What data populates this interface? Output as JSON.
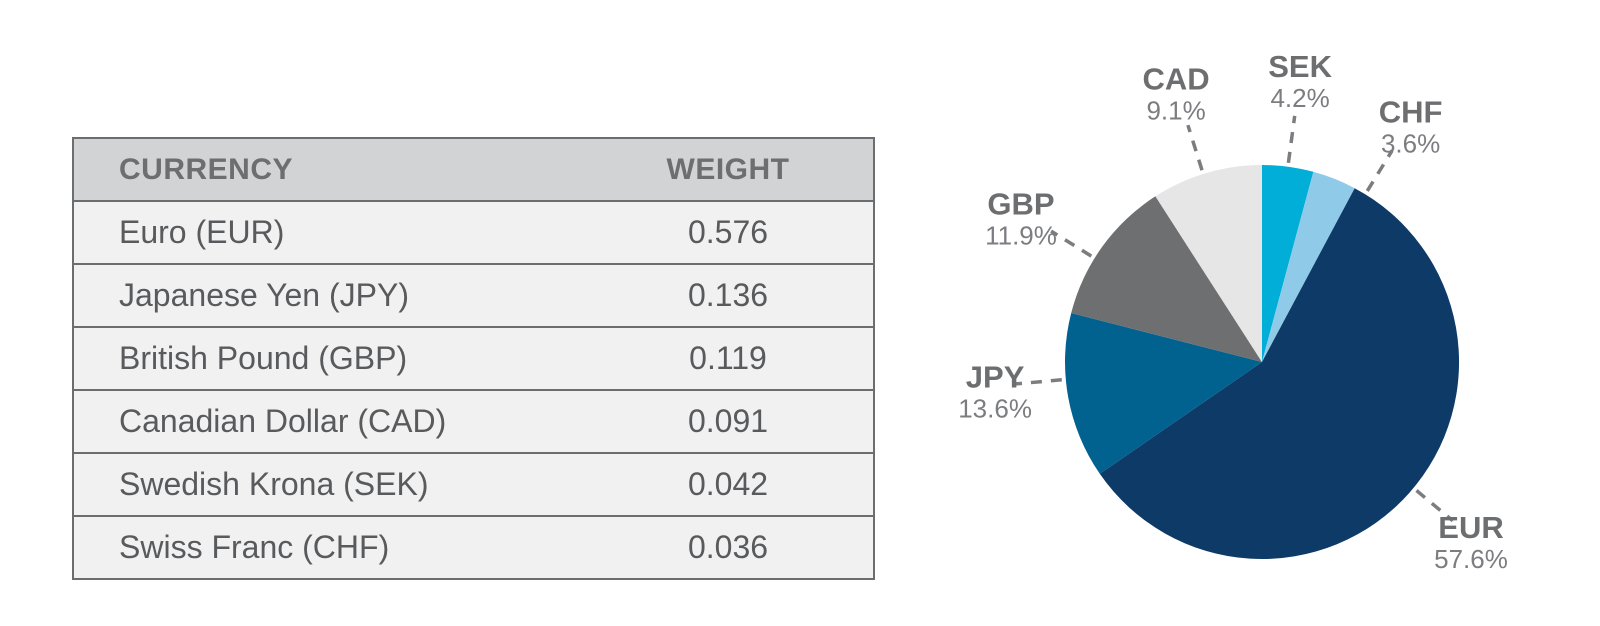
{
  "table": {
    "headers": [
      "CURRENCY",
      "WEIGHT"
    ],
    "rows": [
      [
        "Euro (EUR)",
        "0.576"
      ],
      [
        "Japanese Yen (JPY)",
        "0.136"
      ],
      [
        "British Pound (GBP)",
        "0.119"
      ],
      [
        "Canadian Dollar (CAD)",
        "0.091"
      ],
      [
        "Swedish Krona (SEK)",
        "0.042"
      ],
      [
        "Swiss Franc (CHF)",
        "0.036"
      ]
    ]
  },
  "chart_data": [
    {
      "type": "table",
      "columns": [
        "CURRENCY",
        "WEIGHT"
      ],
      "rows": [
        [
          "Euro (EUR)",
          "0.576"
        ],
        [
          "Japanese Yen (JPY)",
          "0.136"
        ],
        [
          "British Pound (GBP)",
          "0.119"
        ],
        [
          "Canadian Dollar (CAD)",
          "0.091"
        ],
        [
          "Swedish Krona (SEK)",
          "0.042"
        ],
        [
          "Swiss Franc (CHF)",
          "0.036"
        ]
      ]
    },
    {
      "type": "pie",
      "start_angle_deg": 0,
      "direction": "clockwise",
      "labels_position": "outside-with-dashed-leader-lines",
      "legend": "none",
      "slices": [
        {
          "label": "SEK",
          "value_pct": 4.2,
          "pct_label": "4.2%",
          "color": "#00aed7"
        },
        {
          "label": "CHF",
          "value_pct": 3.6,
          "pct_label": "3.6%",
          "color": "#8fcbe9"
        },
        {
          "label": "EUR",
          "value_pct": 57.6,
          "pct_label": "57.6%",
          "color": "#0d3a66"
        },
        {
          "label": "JPY",
          "value_pct": 13.6,
          "pct_label": "13.6%",
          "color": "#01618f"
        },
        {
          "label": "GBP",
          "value_pct": 11.9,
          "pct_label": "11.9%",
          "color": "#6e6f71"
        },
        {
          "label": "CAD",
          "value_pct": 9.1,
          "pct_label": "9.1%",
          "color": "#e6e6e7"
        }
      ]
    }
  ],
  "colors": {
    "background": "#ffffff",
    "table_header_bg": "#d2d3d4",
    "table_row_bg": "#f1f1f2",
    "table_border": "#6b6d6f",
    "table_header_text": "#6d6e70",
    "table_row_text": "#595a5c",
    "pie_label_code_text": "#6d6e70",
    "pie_label_pct_text": "#7c7d80",
    "leader_line": "#7c7d80"
  }
}
